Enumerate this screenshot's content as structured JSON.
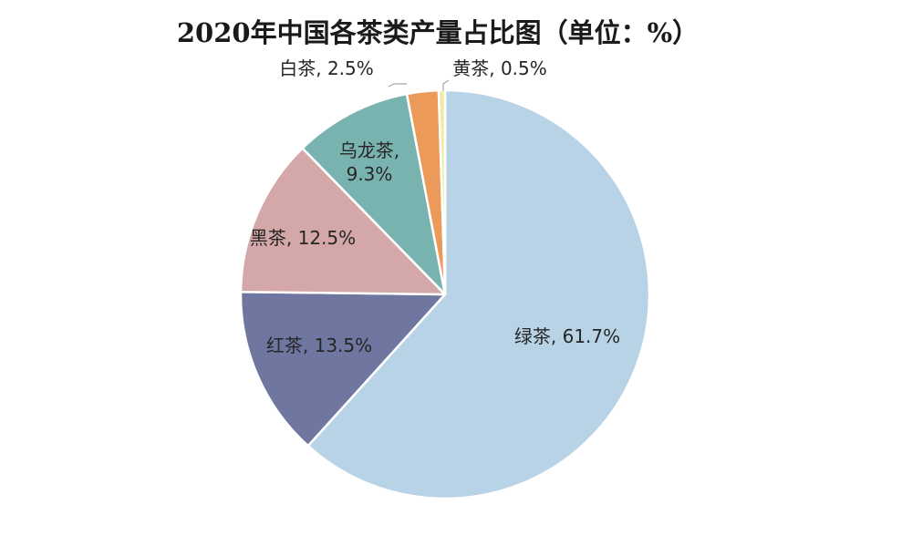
{
  "chart_data": {
    "type": "pie",
    "title": "2020年中国各茶类产量占比图（单位：%）",
    "unit": "%",
    "slices": [
      {
        "name": "绿茶",
        "value": 61.7,
        "label": "绿茶, 61.7%",
        "color": "#b8d3e6"
      },
      {
        "name": "红茶",
        "value": 13.5,
        "label": "红茶, 13.5%",
        "color": "#6f77a0"
      },
      {
        "name": "黑茶",
        "value": 12.5,
        "label": "黑茶, 12.5%",
        "color": "#d4a7a8"
      },
      {
        "name": "乌龙茶",
        "value": 9.3,
        "label": "乌龙茶,\n9.3%",
        "color": "#79b3b0"
      },
      {
        "name": "白茶",
        "value": 2.5,
        "label": "白茶, 2.5%",
        "color": "#eb9a5a"
      },
      {
        "name": "黄茶",
        "value": 0.5,
        "label": "黄茶, 0.5%",
        "color": "#f2eaa2"
      }
    ],
    "start_angle": "12 o'clock",
    "direction": "clockwise",
    "legend": "none",
    "grid": false
  }
}
